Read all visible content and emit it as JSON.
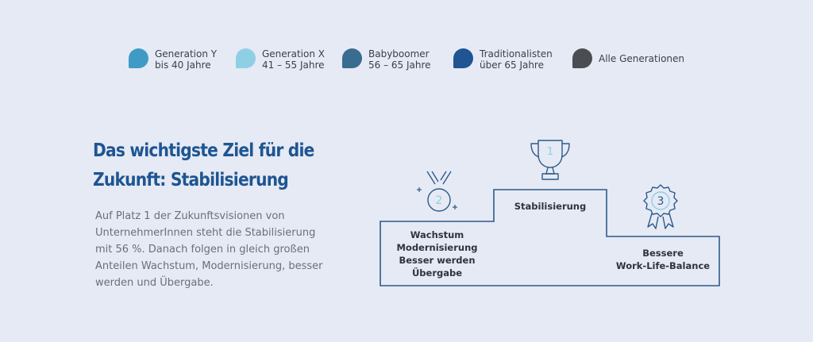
{
  "legend": [
    {
      "line1": "Generation Y",
      "line2": "bis 40 Jahre",
      "color": "#3f9bc6"
    },
    {
      "line1": "Generation X",
      "line2": "41 – 55 Jahre",
      "color": "#8fcfe6"
    },
    {
      "line1": "Babyboomer",
      "line2": "56 – 65 Jahre",
      "color": "#3a6b90"
    },
    {
      "line1": "Traditionalisten",
      "line2": "über 65 Jahre",
      "color": "#1e5592"
    },
    {
      "line1": "Alle Generationen",
      "line2": "",
      "color": "#4a4d52"
    }
  ],
  "headline": {
    "line1": "Das wichtigste Ziel für die",
    "line2": "Zukunft: Stabilisierung"
  },
  "body_text": "Auf Platz 1 der Zukunftsvisionen von UnternehmerInnen steht die Stabilisierung mit 56 %. Danach folgen in gleich großen Anteilen Wachstum, Modernisierung, besser werden und Übergabe.",
  "podium": {
    "first": {
      "rank": "1",
      "lines": [
        "Stabilisierung"
      ]
    },
    "second": {
      "rank": "2",
      "lines": [
        "Wachstum",
        "Modernisierung",
        "Besser werden",
        "Übergabe"
      ]
    },
    "third": {
      "rank": "3",
      "lines": [
        "Bessere",
        "Work-Life-Balance"
      ]
    }
  },
  "colors": {
    "headline": "#1e5592",
    "podium_outline": "#2c5a8c",
    "icon_light": "#8fcfe6"
  }
}
